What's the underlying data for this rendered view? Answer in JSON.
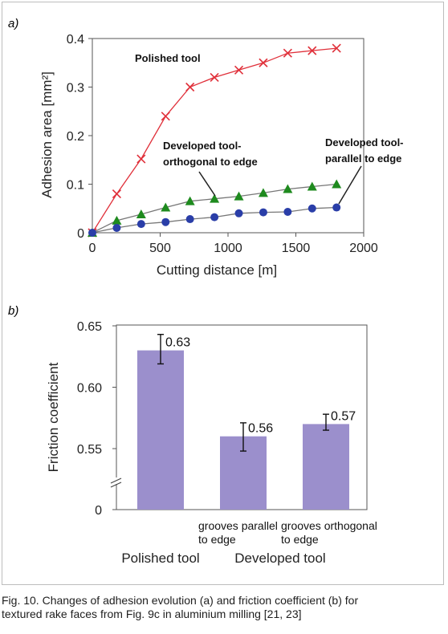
{
  "chart_data": [
    {
      "type": "line",
      "panel_label": "a)",
      "xlabel": "Cutting distance [m]",
      "ylabel": "Adhesion area [mm²]",
      "xlim": [
        0,
        2000
      ],
      "ylim": [
        0,
        0.4
      ],
      "xticks": [
        "0",
        "500",
        "1000",
        "1500",
        "2000"
      ],
      "yticks": [
        "0",
        "0.1",
        "0.2",
        "0.3",
        "0.4"
      ],
      "grid": false,
      "series": [
        {
          "name": "Polished tool",
          "marker": "x",
          "color": "#e0303a",
          "x": [
            0,
            180,
            360,
            540,
            720,
            900,
            1080,
            1260,
            1440,
            1620,
            1800
          ],
          "y": [
            0,
            0.08,
            0.152,
            0.24,
            0.3,
            0.32,
            0.335,
            0.35,
            0.37,
            0.375,
            0.38
          ]
        },
        {
          "name": "Developed tool- orthogonal to edge",
          "marker": "triangle",
          "color": "#1e8a1e",
          "x": [
            0,
            180,
            360,
            540,
            720,
            900,
            1080,
            1260,
            1440,
            1620,
            1800
          ],
          "y": [
            0,
            0.025,
            0.038,
            0.052,
            0.065,
            0.07,
            0.075,
            0.082,
            0.09,
            0.095,
            0.1
          ]
        },
        {
          "name": "Developed tool- parallel to edge",
          "marker": "circle",
          "color": "#2a3ea8",
          "x": [
            0,
            180,
            360,
            540,
            720,
            900,
            1080,
            1260,
            1440,
            1620,
            1800
          ],
          "y": [
            0,
            0.01,
            0.018,
            0.022,
            0.028,
            0.032,
            0.04,
            0.042,
            0.043,
            0.05,
            0.052
          ]
        }
      ],
      "annotations": {
        "polished": "Polished tool",
        "orthogonal_line1": "Developed tool-",
        "orthogonal_line2": "orthogonal to edge",
        "parallel_line1": "Developed tool-",
        "parallel_line2": "parallel to edge"
      }
    },
    {
      "type": "bar",
      "panel_label": "b)",
      "ylabel": "Friction coefficient",
      "ylim": [
        0.5,
        0.65
      ],
      "yticks": [
        "0",
        "0.55",
        "0.60",
        "0.65"
      ],
      "axis_break": true,
      "bar_color": "#9b8fcc",
      "categories": [
        "Polished tool",
        "grooves parallel to edge",
        "grooves orthogonal to edge"
      ],
      "values": [
        0.63,
        0.56,
        0.57
      ],
      "value_labels": [
        "0.63",
        "0.56",
        "0.57"
      ],
      "error_low": [
        0.619,
        0.548,
        0.565
      ],
      "error_high": [
        0.643,
        0.571,
        0.578
      ],
      "category_labels": [
        [
          "Polished tool"
        ],
        [
          "grooves parallel",
          "to edge"
        ],
        [
          "grooves orthogonal",
          "to edge"
        ]
      ],
      "group_label": "Developed tool",
      "grid": false
    }
  ],
  "caption": {
    "line1": "Fig. 10. Changes of adhesion evolution (a) and friction coefficient (b) for",
    "line2": "textured rake faces from Fig. 9c in aluminium milling [21, 23]"
  }
}
